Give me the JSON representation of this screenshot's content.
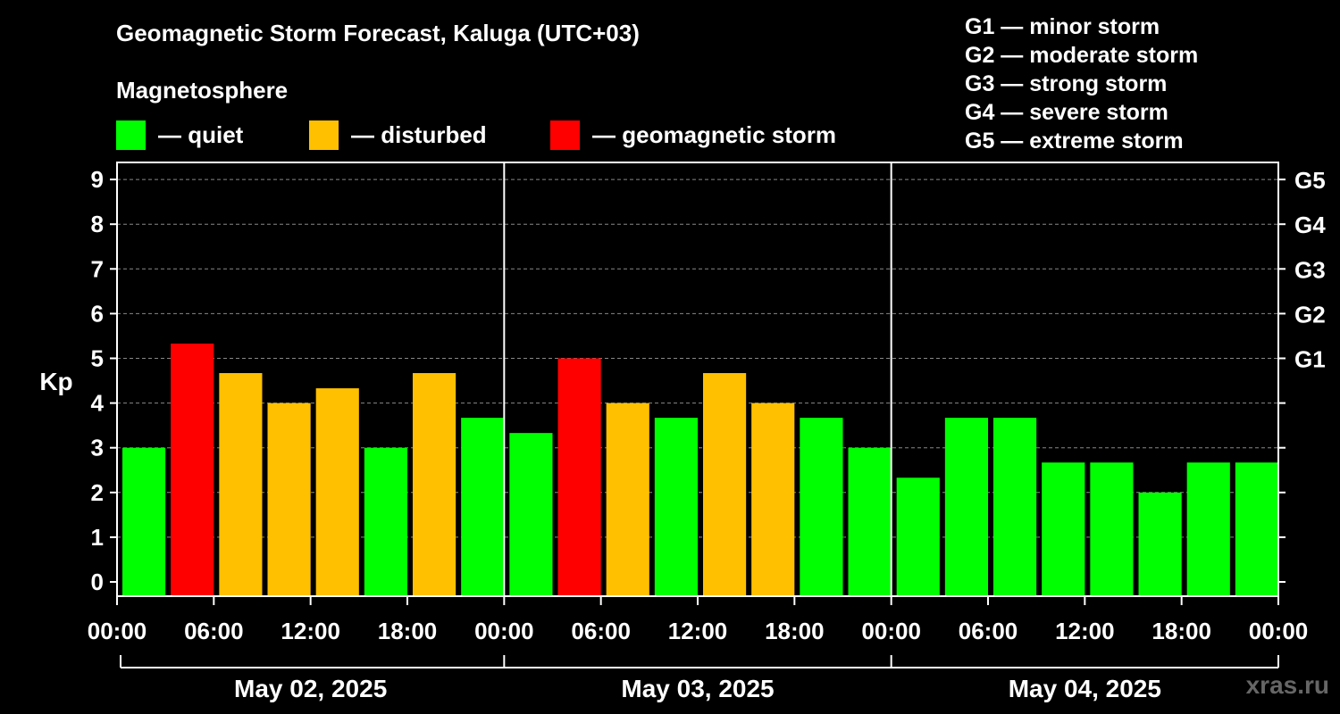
{
  "header": {
    "title": "Geomagnetic Storm Forecast, Kaluga (UTC+03)",
    "subtitle": "Magnetosphere"
  },
  "legend": [
    {
      "label": "— quiet",
      "color": "#00ff00"
    },
    {
      "label": "— disturbed",
      "color": "#ffc000"
    },
    {
      "label": "— geomagnetic storm",
      "color": "#ff0000"
    }
  ],
  "g_scale": [
    "G1 — minor storm",
    "G2 — moderate storm",
    "G3 — strong storm",
    "G4 — severe storm",
    "G5 — extreme storm"
  ],
  "watermark": "xras.ru",
  "chart_data": {
    "type": "bar",
    "ylabel": "Kp",
    "ylim": [
      0,
      9
    ],
    "yticks": [
      "0",
      "1",
      "2",
      "3",
      "4",
      "5",
      "6",
      "7",
      "8",
      "9"
    ],
    "right_ticks": [
      {
        "kp": 5,
        "label": "G1"
      },
      {
        "kp": 6,
        "label": "G2"
      },
      {
        "kp": 7,
        "label": "G3"
      },
      {
        "kp": 8,
        "label": "G4"
      },
      {
        "kp": 9,
        "label": "G5"
      }
    ],
    "xtick_labels": [
      "00:00",
      "06:00",
      "12:00",
      "18:00",
      "00:00",
      "06:00",
      "12:00",
      "18:00",
      "00:00",
      "06:00",
      "12:00",
      "18:00",
      "00:00"
    ],
    "days": [
      "May 02, 2025",
      "May 03, 2025",
      "May 04, 2025"
    ],
    "grid": true,
    "legend_position": "top",
    "colors": {
      "quiet": "#00ff00",
      "disturbed": "#ffc000",
      "storm": "#ff0000"
    },
    "values": [
      3.0,
      5.33,
      4.67,
      4.0,
      4.33,
      3.0,
      4.67,
      3.67,
      3.33,
      5.0,
      4.0,
      3.67,
      4.67,
      4.0,
      3.67,
      3.0,
      2.33,
      3.67,
      3.67,
      2.67,
      2.67,
      2.0,
      2.67,
      2.67
    ],
    "levels": [
      "quiet",
      "storm",
      "disturbed",
      "disturbed",
      "disturbed",
      "quiet",
      "disturbed",
      "quiet",
      "quiet",
      "storm",
      "disturbed",
      "quiet",
      "disturbed",
      "disturbed",
      "quiet",
      "quiet",
      "quiet",
      "quiet",
      "quiet",
      "quiet",
      "quiet",
      "quiet",
      "quiet",
      "quiet"
    ]
  }
}
